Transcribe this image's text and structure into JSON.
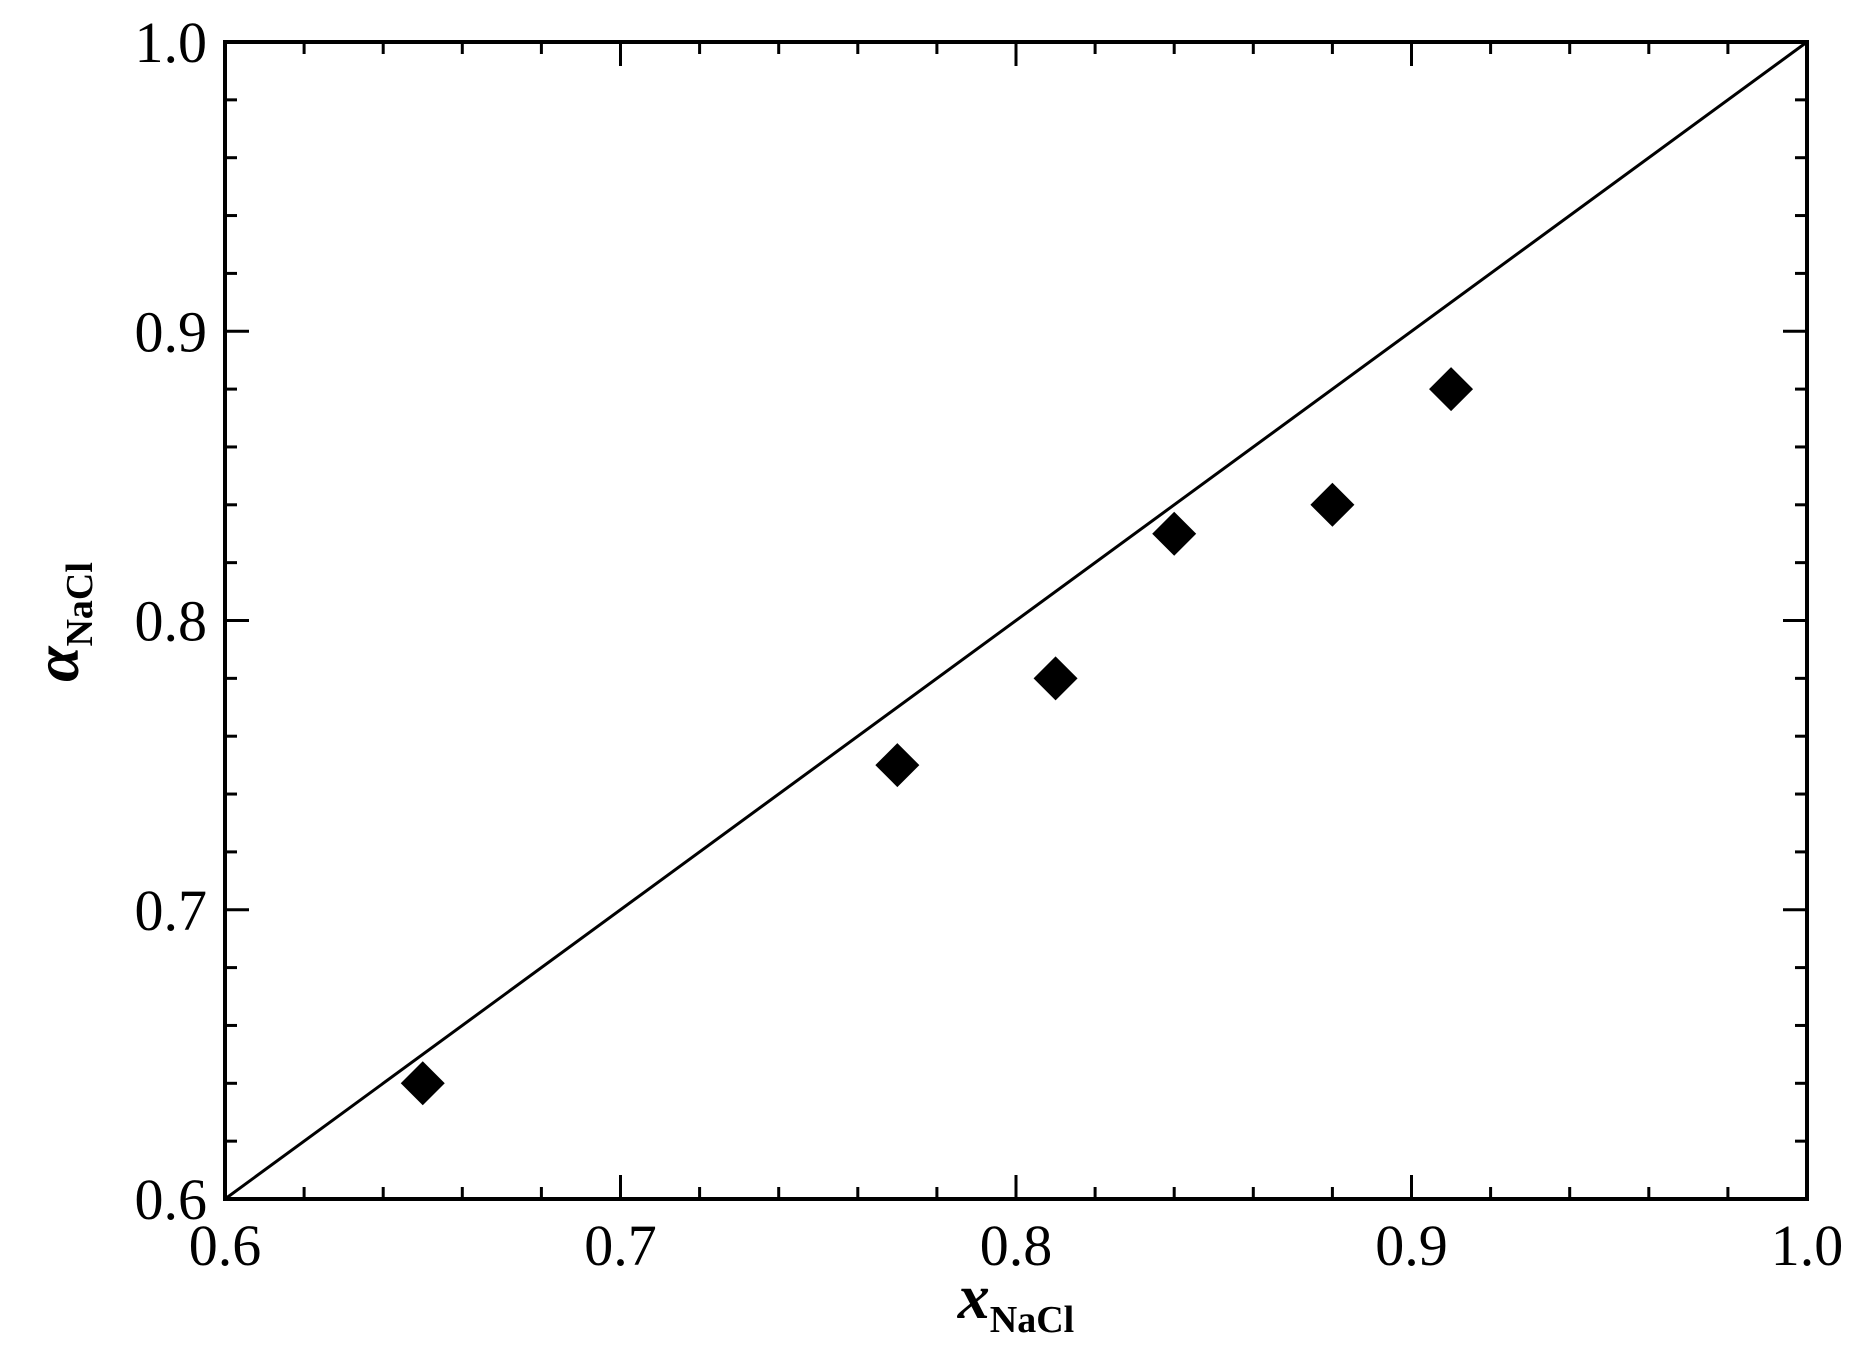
{
  "chart_data": {
    "type": "scatter",
    "xlabel": {
      "main": "x",
      "sub": "NaCl"
    },
    "ylabel": {
      "main": "α",
      "sub": "NaCl"
    },
    "xlim": [
      0.6,
      1.0
    ],
    "ylim": [
      0.6,
      1.0
    ],
    "x_ticks": [
      "0.6",
      "0.7",
      "0.8",
      "0.9",
      "1.0"
    ],
    "y_ticks": [
      "0.6",
      "0.7",
      "0.8",
      "0.9",
      "1.0"
    ],
    "x_tick_values": [
      0.6,
      0.7,
      0.8,
      0.9,
      1.0
    ],
    "y_tick_values": [
      0.6,
      0.7,
      0.8,
      0.9,
      1.0
    ],
    "minor_tick_step": 0.02,
    "grid": false,
    "marker": "diamond",
    "marker_color": "#000000",
    "points": [
      {
        "x": 0.65,
        "y": 0.64
      },
      {
        "x": 0.77,
        "y": 0.75
      },
      {
        "x": 0.81,
        "y": 0.78
      },
      {
        "x": 0.84,
        "y": 0.83
      },
      {
        "x": 0.88,
        "y": 0.84
      },
      {
        "x": 0.91,
        "y": 0.88
      }
    ],
    "reference_line": {
      "x": [
        0.6,
        1.0
      ],
      "y": [
        0.6,
        1.0
      ],
      "color": "#000000"
    }
  }
}
